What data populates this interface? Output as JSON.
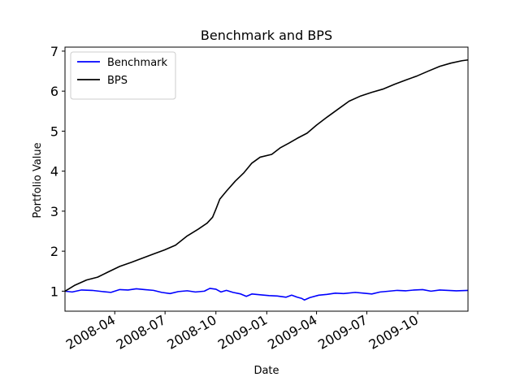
{
  "chart_data": {
    "type": "line",
    "title": "Benchmark and BPS",
    "xlabel": "Date",
    "ylabel": "Portfolio Value",
    "x_ticks": [
      "2008-04",
      "2008-07",
      "2008-10",
      "2009-01",
      "2009-04",
      "2009-07",
      "2009-10"
    ],
    "xlim": [
      "2008-01-02",
      "2009-12-31"
    ],
    "y_ticks": [
      1,
      2,
      3,
      4,
      5,
      6,
      7
    ],
    "ylim": [
      0.5,
      7.1
    ],
    "grid": false,
    "legend": "top-left",
    "series": [
      {
        "name": "Benchmark",
        "color": "#0000ff",
        "points": [
          [
            "2008-01-02",
            1.0
          ],
          [
            "2008-01-15",
            0.98
          ],
          [
            "2008-02-01",
            1.03
          ],
          [
            "2008-02-20",
            1.02
          ],
          [
            "2008-03-10",
            0.99
          ],
          [
            "2008-03-25",
            0.97
          ],
          [
            "2008-04-10",
            1.04
          ],
          [
            "2008-04-25",
            1.03
          ],
          [
            "2008-05-10",
            1.06
          ],
          [
            "2008-05-25",
            1.04
          ],
          [
            "2008-06-10",
            1.02
          ],
          [
            "2008-06-25",
            0.97
          ],
          [
            "2008-07-10",
            0.94
          ],
          [
            "2008-07-25",
            0.99
          ],
          [
            "2008-08-10",
            1.01
          ],
          [
            "2008-08-25",
            0.98
          ],
          [
            "2008-09-10",
            1.0
          ],
          [
            "2008-09-20",
            1.07
          ],
          [
            "2008-10-01",
            1.05
          ],
          [
            "2008-10-10",
            0.98
          ],
          [
            "2008-10-20",
            1.02
          ],
          [
            "2008-11-01",
            0.97
          ],
          [
            "2008-11-15",
            0.93
          ],
          [
            "2008-11-25",
            0.87
          ],
          [
            "2008-12-05",
            0.93
          ],
          [
            "2008-12-20",
            0.91
          ],
          [
            "2009-01-05",
            0.89
          ],
          [
            "2009-01-20",
            0.88
          ],
          [
            "2009-02-05",
            0.85
          ],
          [
            "2009-02-15",
            0.9
          ],
          [
            "2009-02-25",
            0.85
          ],
          [
            "2009-03-05",
            0.82
          ],
          [
            "2009-03-10",
            0.78
          ],
          [
            "2009-03-20",
            0.84
          ],
          [
            "2009-04-05",
            0.9
          ],
          [
            "2009-04-20",
            0.92
          ],
          [
            "2009-05-05",
            0.95
          ],
          [
            "2009-05-20",
            0.94
          ],
          [
            "2009-06-10",
            0.97
          ],
          [
            "2009-06-25",
            0.95
          ],
          [
            "2009-07-10",
            0.93
          ],
          [
            "2009-07-25",
            0.98
          ],
          [
            "2009-08-10",
            1.0
          ],
          [
            "2009-08-25",
            1.02
          ],
          [
            "2009-09-10",
            1.01
          ],
          [
            "2009-09-25",
            1.03
          ],
          [
            "2009-10-10",
            1.04
          ],
          [
            "2009-10-25",
            1.0
          ],
          [
            "2009-11-10",
            1.03
          ],
          [
            "2009-11-25",
            1.02
          ],
          [
            "2009-12-10",
            1.01
          ],
          [
            "2009-12-31",
            1.02
          ]
        ]
      },
      {
        "name": "BPS",
        "color": "#000000",
        "points": [
          [
            "2008-01-02",
            1.0
          ],
          [
            "2008-01-20",
            1.15
          ],
          [
            "2008-02-10",
            1.28
          ],
          [
            "2008-03-01",
            1.35
          ],
          [
            "2008-03-20",
            1.48
          ],
          [
            "2008-04-10",
            1.62
          ],
          [
            "2008-05-01",
            1.72
          ],
          [
            "2008-05-20",
            1.82
          ],
          [
            "2008-06-10",
            1.93
          ],
          [
            "2008-06-30",
            2.03
          ],
          [
            "2008-07-20",
            2.15
          ],
          [
            "2008-08-10",
            2.38
          ],
          [
            "2008-08-30",
            2.55
          ],
          [
            "2008-09-15",
            2.7
          ],
          [
            "2008-09-25",
            2.85
          ],
          [
            "2008-10-01",
            3.05
          ],
          [
            "2008-10-08",
            3.3
          ],
          [
            "2008-10-20",
            3.5
          ],
          [
            "2008-11-05",
            3.75
          ],
          [
            "2008-11-20",
            3.95
          ],
          [
            "2008-12-05",
            4.2
          ],
          [
            "2008-12-20",
            4.35
          ],
          [
            "2009-01-10",
            4.42
          ],
          [
            "2009-01-25",
            4.58
          ],
          [
            "2009-02-10",
            4.7
          ],
          [
            "2009-02-25",
            4.82
          ],
          [
            "2009-03-15",
            4.95
          ],
          [
            "2009-04-01",
            5.15
          ],
          [
            "2009-04-20",
            5.35
          ],
          [
            "2009-05-10",
            5.55
          ],
          [
            "2009-05-30",
            5.75
          ],
          [
            "2009-06-20",
            5.88
          ],
          [
            "2009-07-10",
            5.97
          ],
          [
            "2009-07-30",
            6.05
          ],
          [
            "2009-08-20",
            6.17
          ],
          [
            "2009-09-10",
            6.28
          ],
          [
            "2009-09-30",
            6.38
          ],
          [
            "2009-10-20",
            6.5
          ],
          [
            "2009-11-10",
            6.62
          ],
          [
            "2009-11-30",
            6.7
          ],
          [
            "2009-12-20",
            6.76
          ],
          [
            "2009-12-31",
            6.78
          ]
        ]
      }
    ]
  }
}
